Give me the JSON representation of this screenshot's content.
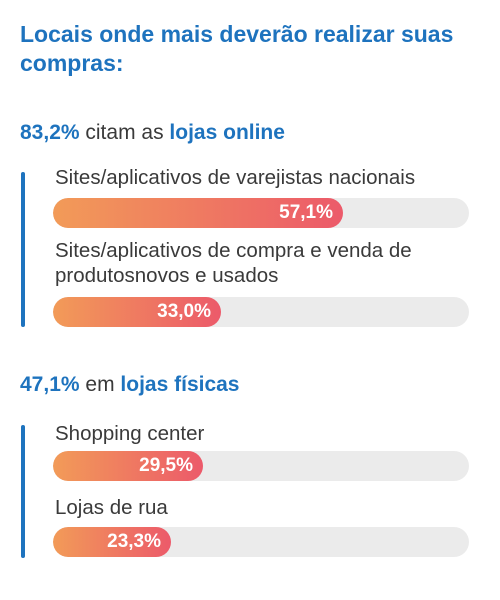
{
  "title": "Locais onde mais deverão realizar suas compras:",
  "colors": {
    "accent": "#1e73be",
    "bar_start": "#f29b58",
    "bar_end": "#ec5a6a",
    "track": "#ebebeb",
    "text": "#3a3a3a"
  },
  "sections": [
    {
      "pct": "83,2%",
      "text": "citam as",
      "place": "lojas online"
    },
    {
      "pct": "47,1%",
      "text": "em",
      "place": "lojas físicas"
    }
  ],
  "chart_data": {
    "type": "bar",
    "orientation": "horizontal",
    "unit": "%",
    "xlim": [
      0,
      100
    ],
    "categories": [
      "Sites/aplicativos de varejistas nacionais",
      "Sites/aplicativos de compra e venda de produtosnovos e usados",
      "Shopping center",
      "Lojas de rua"
    ],
    "values": [
      57.1,
      33.0,
      29.5,
      23.3
    ],
    "value_labels": [
      "57,1%",
      "33,0%",
      "29,5%",
      "23,3%"
    ],
    "groups": [
      "lojas online",
      "lojas online",
      "lojas físicas",
      "lojas físicas"
    ],
    "grid": false,
    "legend": "none"
  }
}
